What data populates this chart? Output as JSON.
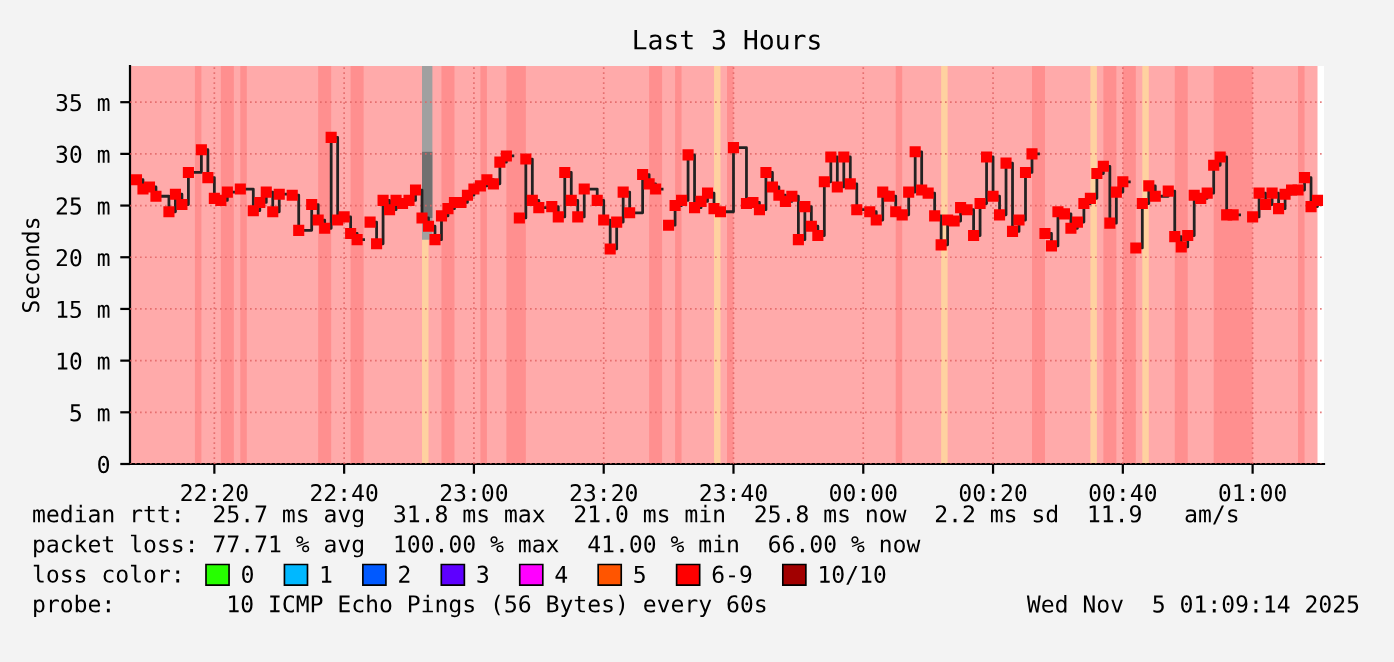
{
  "chart_data": {
    "type": "step",
    "title": "Last 3 Hours",
    "ylabel": "Seconds",
    "xlim": [
      "2025-11-04T22:07",
      "2025-11-05T01:11"
    ],
    "ylim": [
      0,
      38.5
    ],
    "xticks": [
      {
        "value": "2025-11-04T22:20",
        "label": "22:20"
      },
      {
        "value": "2025-11-04T22:40",
        "label": "22:40"
      },
      {
        "value": "2025-11-04T23:00",
        "label": "23:00"
      },
      {
        "value": "2025-11-04T23:20",
        "label": "23:20"
      },
      {
        "value": "2025-11-04T23:40",
        "label": "23:40"
      },
      {
        "value": "2025-11-05T00:00",
        "label": "00:00"
      },
      {
        "value": "2025-11-05T00:20",
        "label": "00:20"
      },
      {
        "value": "2025-11-05T00:40",
        "label": "00:40"
      },
      {
        "value": "2025-11-05T01:00",
        "label": "01:00"
      }
    ],
    "yticks": [
      0,
      {
        "value": 5,
        "label": "5 m"
      },
      {
        "value": 10,
        "label": "10 m"
      },
      {
        "value": 15,
        "label": "15 m"
      },
      {
        "value": 20,
        "label": "20 m"
      },
      {
        "value": 25,
        "label": "25 m"
      },
      {
        "value": 30,
        "label": "30 m"
      },
      {
        "value": 35,
        "label": "35 m"
      }
    ],
    "grid": true,
    "marker": "square",
    "legend": "bottom",
    "legend_title": "loss color:",
    "bands": [
      {
        "axis": "x",
        "from": "2025-11-04T22:07",
        "to": "2025-11-05T01:10",
        "color": "#ffaaaa"
      },
      {
        "axis": "x",
        "from": "2025-11-04T22:17",
        "to": "2025-11-04T22:18",
        "color": "#ff8f8f"
      },
      {
        "axis": "x",
        "from": "2025-11-04T22:21",
        "to": "2025-11-04T22:23",
        "color": "#ff8f8f"
      },
      {
        "axis": "x",
        "from": "2025-11-04T22:24",
        "to": "2025-11-04T22:25",
        "color": "#ff8f8f"
      },
      {
        "axis": "x",
        "from": "2025-11-04T22:36",
        "to": "2025-11-04T22:38",
        "color": "#ff8f8f"
      },
      {
        "axis": "x",
        "from": "2025-11-04T22:41",
        "to": "2025-11-04T22:43",
        "color": "#ff8f8f"
      },
      {
        "axis": "x",
        "from": "2025-11-04T22:55",
        "to": "2025-11-04T22:57",
        "color": "#ff8f8f"
      },
      {
        "axis": "x",
        "from": "2025-11-04T23:01",
        "to": "2025-11-04T23:02",
        "color": "#ff8f8f"
      },
      {
        "axis": "x",
        "from": "2025-11-04T23:05",
        "to": "2025-11-04T23:08",
        "color": "#ff8f8f"
      },
      {
        "axis": "x",
        "from": "2025-11-04T23:27",
        "to": "2025-11-04T23:29",
        "color": "#ff8f8f"
      },
      {
        "axis": "x",
        "from": "2025-11-04T23:31",
        "to": "2025-11-04T23:32",
        "color": "#ff8f8f"
      },
      {
        "axis": "x",
        "from": "2025-11-04T23:39",
        "to": "2025-11-04T23:40",
        "color": "#ff8f8f"
      },
      {
        "axis": "x",
        "from": "2025-11-05T00:05",
        "to": "2025-11-05T00:06",
        "color": "#ff8f8f"
      },
      {
        "axis": "x",
        "from": "2025-11-05T00:26",
        "to": "2025-11-05T00:28",
        "color": "#ff8f8f"
      },
      {
        "axis": "x",
        "from": "2025-11-05T00:37",
        "to": "2025-11-05T00:39",
        "color": "#ff8f8f"
      },
      {
        "axis": "x",
        "from": "2025-11-05T00:40",
        "to": "2025-11-05T00:42",
        "color": "#ff8f8f"
      },
      {
        "axis": "x",
        "from": "2025-11-05T00:48",
        "to": "2025-11-05T00:50",
        "color": "#ff8f8f"
      },
      {
        "axis": "x",
        "from": "2025-11-05T00:54",
        "to": "2025-11-05T01:00",
        "color": "#ff8f8f"
      },
      {
        "axis": "x",
        "from": "2025-11-05T01:07",
        "to": "2025-11-05T01:08",
        "color": "#ff8f8f"
      },
      {
        "axis": "x",
        "from": "2025-11-04T22:52",
        "to": "2025-11-04T22:53",
        "color": "#ffd2a0"
      },
      {
        "axis": "x",
        "from": "2025-11-04T23:37",
        "to": "2025-11-04T23:38",
        "color": "#ffd2a0"
      },
      {
        "axis": "x",
        "from": "2025-11-05T00:12",
        "to": "2025-11-05T00:13",
        "color": "#ffd2a0"
      },
      {
        "axis": "x",
        "from": "2025-11-05T00:35",
        "to": "2025-11-05T00:36",
        "color": "#ffd2a0"
      },
      {
        "axis": "x",
        "from": "2025-11-05T00:43",
        "to": "2025-11-05T00:44",
        "color": "#ffd2a0"
      }
    ],
    "series": [
      {
        "type": "bar",
        "color": "#a0a0a0",
        "x": [
          "2025-11-04T22:52"
        ],
        "base": [
          21.7
        ],
        "values": [
          16.8
        ]
      },
      {
        "type": "bar",
        "color": "#707070",
        "x": [
          "2025-11-04T22:52"
        ],
        "base": [
          23.8
        ],
        "values": [
          6.4
        ]
      },
      {
        "color": "#ff0000",
        "x": [
          "2025-11-04T22:08",
          "2025-11-04T22:09",
          "2025-11-04T22:10",
          "2025-11-04T22:11",
          "2025-11-04T22:13",
          "2025-11-04T22:14",
          "2025-11-04T22:15",
          "2025-11-04T22:16",
          "2025-11-04T22:18",
          "2025-11-04T22:19",
          "2025-11-04T22:20",
          "2025-11-04T22:21",
          "2025-11-04T22:22",
          "2025-11-04T22:24",
          "2025-11-04T22:26",
          "2025-11-04T22:27",
          "2025-11-04T22:28",
          "2025-11-04T22:29",
          "2025-11-04T22:30",
          "2025-11-04T22:32",
          "2025-11-04T22:33",
          "2025-11-04T22:35",
          "2025-11-04T22:36",
          "2025-11-04T22:37",
          "2025-11-04T22:38",
          "2025-11-04T22:39",
          "2025-11-04T22:40",
          "2025-11-04T22:41",
          "2025-11-04T22:42",
          "2025-11-04T22:43",
          "2025-11-04T22:44",
          "2025-11-04T22:45",
          "2025-11-04T22:46",
          "2025-11-04T22:47",
          "2025-11-04T22:48",
          "2025-11-04T22:49",
          "2025-11-04T22:50",
          "2025-11-04T22:51",
          "2025-11-04T22:52",
          "2025-11-04T22:53",
          "2025-11-04T22:54",
          "2025-11-04T22:55",
          "2025-11-04T22:56",
          "2025-11-04T22:57",
          "2025-11-04T22:58",
          "2025-11-04T22:59",
          "2025-11-04T23:00",
          "2025-11-04T23:01",
          "2025-11-04T23:02",
          "2025-11-04T23:03",
          "2025-11-04T23:04",
          "2025-11-04T23:05",
          "2025-11-04T23:06",
          "2025-11-04T23:07",
          "2025-11-04T23:08",
          "2025-11-04T23:09",
          "2025-11-04T23:10",
          "2025-11-04T23:12",
          "2025-11-04T23:13",
          "2025-11-04T23:14",
          "2025-11-04T23:15",
          "2025-11-04T23:16",
          "2025-11-04T23:17",
          "2025-11-04T23:19",
          "2025-11-04T23:20",
          "2025-11-04T23:21",
          "2025-11-04T23:22",
          "2025-11-04T23:23",
          "2025-11-04T23:24",
          "2025-11-04T23:26",
          "2025-11-04T23:27",
          "2025-11-04T23:28",
          "2025-11-04T23:29",
          "2025-11-04T23:30",
          "2025-11-04T23:31",
          "2025-11-04T23:32",
          "2025-11-04T23:33",
          "2025-11-04T23:34",
          "2025-11-04T23:35",
          "2025-11-04T23:36",
          "2025-11-04T23:37",
          "2025-11-04T23:38",
          "2025-11-04T23:40",
          "2025-11-04T23:42",
          "2025-11-04T23:43",
          "2025-11-04T23:44",
          "2025-11-04T23:45",
          "2025-11-04T23:46",
          "2025-11-04T23:47",
          "2025-11-04T23:48",
          "2025-11-04T23:49",
          "2025-11-04T23:50",
          "2025-11-04T23:51",
          "2025-11-04T23:52",
          "2025-11-04T23:53",
          "2025-11-04T23:54",
          "2025-11-04T23:55",
          "2025-11-04T23:56",
          "2025-11-04T23:57",
          "2025-11-04T23:58",
          "2025-11-04T23:59",
          "2025-11-05T00:01",
          "2025-11-05T00:02",
          "2025-11-05T00:03",
          "2025-11-05T00:04",
          "2025-11-05T00:05",
          "2025-11-05T00:06",
          "2025-11-05T00:07",
          "2025-11-05T00:08",
          "2025-11-05T00:09",
          "2025-11-05T00:10",
          "2025-11-05T00:11",
          "2025-11-05T00:12",
          "2025-11-05T00:13",
          "2025-11-05T00:14",
          "2025-11-05T00:15",
          "2025-11-05T00:16",
          "2025-11-05T00:17",
          "2025-11-05T00:18",
          "2025-11-05T00:19",
          "2025-11-05T00:20",
          "2025-11-05T00:21",
          "2025-11-05T00:22",
          "2025-11-05T00:23",
          "2025-11-05T00:24",
          "2025-11-05T00:25",
          "2025-11-05T00:26",
          "2025-11-05T00:27",
          "2025-11-05T00:28",
          "2025-11-05T00:29",
          "2025-11-05T00:30",
          "2025-11-05T00:31",
          "2025-11-05T00:32",
          "2025-11-05T00:33",
          "2025-11-05T00:34",
          "2025-11-05T00:35",
          "2025-11-05T00:36",
          "2025-11-05T00:37",
          "2025-11-05T00:38",
          "2025-11-05T00:39",
          "2025-11-05T00:40",
          "2025-11-05T00:41",
          "2025-11-05T00:42",
          "2025-11-05T00:43",
          "2025-11-05T00:44",
          "2025-11-05T00:45",
          "2025-11-05T00:47",
          "2025-11-05T00:48",
          "2025-11-05T00:49",
          "2025-11-05T00:50",
          "2025-11-05T00:51",
          "2025-11-05T00:52",
          "2025-11-05T00:53",
          "2025-11-05T00:54",
          "2025-11-05T00:55",
          "2025-11-05T00:56",
          "2025-11-05T00:57",
          "2025-11-05T00:58",
          "2025-11-05T01:00",
          "2025-11-05T01:01",
          "2025-11-05T01:02",
          "2025-11-05T01:03",
          "2025-11-05T01:04",
          "2025-11-05T01:05",
          "2025-11-05T01:06",
          "2025-11-05T01:07",
          "2025-11-05T01:08",
          "2025-11-05T01:09",
          "2025-11-05T01:10"
        ],
        "values": [
          27.5,
          26.6,
          26.8,
          25.9,
          24.4,
          26.1,
          25.1,
          28.2,
          30.4,
          27.7,
          25.7,
          25.5,
          26.3,
          26.6,
          24.5,
          25.3,
          26.3,
          24.4,
          26.1,
          26.0,
          22.6,
          25.1,
          23.6,
          22.8,
          31.6,
          23.6,
          23.9,
          22.3,
          21.7,
          null,
          23.4,
          21.3,
          25.5,
          24.6,
          25.5,
          25.2,
          25.5,
          26.5,
          23.8,
          23.0,
          21.7,
          24.0,
          24.7,
          25.3,
          25.3,
          26.0,
          26.6,
          26.9,
          27.5,
          27.1,
          29.2,
          29.8,
          null,
          23.8,
          29.5,
          25.5,
          24.8,
          24.9,
          23.9,
          28.2,
          25.5,
          23.9,
          26.6,
          25.5,
          23.6,
          20.8,
          23.4,
          26.3,
          24.3,
          28.0,
          27.1,
          26.6,
          null,
          23.1,
          25.0,
          25.5,
          29.9,
          24.8,
          25.4,
          26.2,
          24.7,
          24.4,
          30.6,
          25.2,
          25.3,
          24.6,
          28.2,
          26.8,
          26.0,
          25.4,
          25.9,
          21.7,
          24.9,
          23.0,
          22.1,
          27.3,
          29.7,
          26.8,
          29.7,
          27.1,
          24.6,
          24.4,
          23.6,
          26.3,
          25.9,
          24.4,
          24.1,
          26.3,
          30.2,
          26.5,
          26.2,
          24.0,
          21.2,
          23.6,
          23.5,
          24.8,
          24.6,
          22.1,
          25.2,
          29.7,
          25.9,
          24.1,
          29.1,
          22.5,
          23.6,
          28.2,
          30.0,
          null,
          22.3,
          21.1,
          24.4,
          24.2,
          22.8,
          23.4,
          25.2,
          25.7,
          28.1,
          28.8,
          23.3,
          26.3,
          27.3,
          null,
          20.9,
          25.2,
          26.9,
          25.9,
          26.4,
          22.0,
          21.0,
          22.1,
          26.0,
          25.7,
          26.2,
          28.9,
          29.7,
          24.1,
          24.1,
          null,
          23.9,
          26.2,
          25.1,
          26.2,
          24.7,
          26.1,
          26.5,
          26.5,
          27.7,
          24.9,
          25.5
        ]
      },
      {
        "type": "bar",
        "name": "0",
        "color": "#26ff00"
      },
      {
        "type": "bar",
        "name": "1",
        "color": "#00b8ff"
      },
      {
        "type": "bar",
        "name": "2",
        "color": "#0059ff"
      },
      {
        "type": "bar",
        "name": "3",
        "color": "#5e00ff"
      },
      {
        "type": "bar",
        "name": "4",
        "color": "#ff00ff"
      },
      {
        "type": "bar",
        "name": "5",
        "color": "#ff5500"
      },
      {
        "type": "bar",
        "name": "6-9",
        "color": "#ff0000"
      },
      {
        "type": "bar",
        "name": "10/10",
        "color": "#a10000"
      }
    ],
    "annotations": [
      "median rtt:  25.7 ms avg  31.8 ms max  21.0 ms min  25.8 ms now  2.2 ms sd  11.9   am/s",
      "packet loss: 77.71 % avg  100.00 % max  41.00 % min  66.00 % now",
      "probe:        10 ICMP Echo Pings (56 Bytes) every 60s",
      "Wed Nov  5 01:09:14 2025"
    ]
  }
}
